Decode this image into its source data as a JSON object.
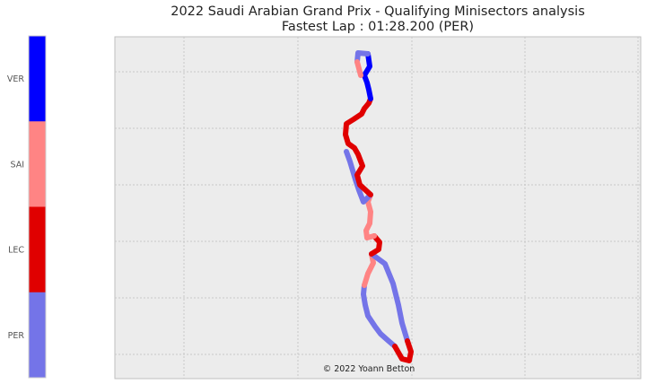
{
  "chart_data": {
    "type": "scatter",
    "title": "2022 Saudi Arabian Grand Prix - Qualifying Minisectors analysis",
    "subtitle": "Fastest Lap : 01:28.200 (PER)",
    "credit": "© 2022 Yoann Betton",
    "grid": true,
    "axes_tick_labels": false,
    "legend_placement": "colorbar-left",
    "colorbar": {
      "labels": [
        "VER",
        "SAI",
        "LEC",
        "PER"
      ],
      "colors": [
        "#0000ff",
        "#ff8484",
        "#e00000",
        "#7474e8"
      ]
    },
    "series": [
      {
        "name": "VER",
        "color": "#0000ff"
      },
      {
        "name": "SAI",
        "color": "#ff8484"
      },
      {
        "name": "LEC",
        "color": "#e00000"
      },
      {
        "name": "PER",
        "color": "#7474e8"
      }
    ],
    "track_segments": [
      {
        "driver": "PER",
        "points": [
          [
            440,
            386
          ],
          [
            433,
            380
          ],
          [
            424,
            372
          ],
          [
            418,
            364
          ],
          [
            410,
            352
          ],
          [
            407,
            340
          ],
          [
            405,
            328
          ],
          [
            406,
            318
          ]
        ]
      },
      {
        "driver": "SAI",
        "points": [
          [
            406,
            318
          ],
          [
            410,
            305
          ],
          [
            416,
            293
          ],
          [
            414,
            283
          ]
        ]
      },
      {
        "driver": "PER",
        "points": [
          [
            414,
            283
          ],
          [
            429,
            294
          ],
          [
            438,
            316
          ],
          [
            444,
            340
          ],
          [
            448,
            360
          ],
          [
            454,
            380
          ]
        ]
      },
      {
        "driver": "LEC",
        "points": [
          [
            454,
            380
          ],
          [
            458,
            392
          ],
          [
            456,
            402
          ],
          [
            448,
            400
          ],
          [
            440,
            386
          ]
        ]
      },
      {
        "driver": "LEC",
        "points": [
          [
            414,
            283
          ],
          [
            422,
            278
          ],
          [
            423,
            270
          ],
          [
            417,
            263
          ]
        ]
      },
      {
        "driver": "SAI",
        "points": [
          [
            417,
            263
          ],
          [
            409,
            265
          ],
          [
            408,
            257
          ],
          [
            412,
            249
          ],
          [
            413,
            236
          ],
          [
            410,
            225
          ],
          [
            413,
            217
          ]
        ]
      },
      {
        "driver": "PER",
        "points": [
          [
            413,
            217
          ],
          [
            405,
            225
          ],
          [
            400,
            212
          ],
          [
            396,
            200
          ],
          [
            390,
            180
          ],
          [
            386,
            169
          ]
        ]
      },
      {
        "driver": "LEC",
        "points": [
          [
            413,
            217
          ],
          [
            401,
            206
          ],
          [
            398,
            195
          ],
          [
            404,
            185
          ],
          [
            399,
            172
          ],
          [
            395,
            165
          ],
          [
            388,
            160
          ],
          [
            385,
            150
          ],
          [
            386,
            138
          ],
          [
            394,
            133
          ],
          [
            403,
            127
          ],
          [
            406,
            121
          ],
          [
            411,
            115
          ],
          [
            413,
            110
          ]
        ]
      },
      {
        "driver": "VER",
        "points": [
          [
            413,
            110
          ],
          [
            411,
            100
          ],
          [
            409,
            92
          ],
          [
            406,
            84
          ],
          [
            412,
            74
          ],
          [
            410,
            60
          ]
        ]
      },
      {
        "driver": "PER",
        "points": [
          [
            410,
            60
          ],
          [
            399,
            59
          ],
          [
            398,
            69
          ]
        ]
      },
      {
        "driver": "SAI",
        "points": [
          [
            398,
            69
          ],
          [
            402,
            84
          ]
        ]
      }
    ]
  }
}
